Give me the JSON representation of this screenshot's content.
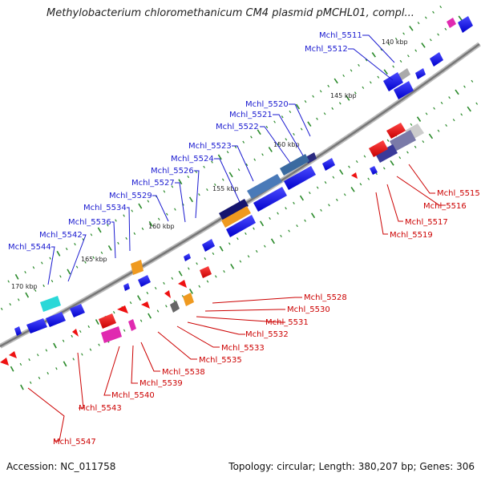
{
  "title": "Methylobacterium chloromethanicum CM4 plasmid pMCHL01, compl...",
  "footer": {
    "accession": "Accession: NC_011758",
    "summary": "Topology: circular; Length: 380,207 bp; Genes: 306"
  },
  "scale_labels": [
    "140 kbp",
    "145 kbp",
    "150 kbp",
    "155 kbp",
    "160 kbp",
    "165 kbp",
    "170 kbp"
  ],
  "genes_top": [
    "Mchl_5511",
    "Mchl_5512",
    "Mchl_5520",
    "Mchl_5521",
    "Mchl_5522",
    "Mchl_5523",
    "Mchl_5524",
    "Mchl_5526",
    "Mchl_5527",
    "Mchl_5529",
    "Mchl_5534",
    "Mchl_5536",
    "Mchl_5542",
    "Mchl_5544"
  ],
  "genes_bottom": [
    "Mchl_5515",
    "Mchl_5516",
    "Mchl_5517",
    "Mchl_5519",
    "Mchl_5528",
    "Mchl_5530",
    "Mchl_5531",
    "Mchl_5532",
    "Mchl_5533",
    "Mchl_5535",
    "Mchl_5538",
    "Mchl_5539",
    "Mchl_5540",
    "Mchl_5543",
    "Mchl_5547"
  ],
  "colors": {
    "forward": "#1a1ae6",
    "reverse": "#ee1111",
    "label_forward": "#1a1ad0",
    "label_reverse": "#cc0000",
    "backbone": "#888888",
    "tick": "#2a8a2a"
  }
}
